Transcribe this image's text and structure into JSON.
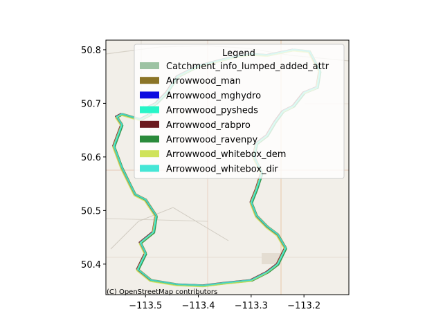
{
  "map": {
    "attribution": "(C) OpenStreetMap contributors",
    "xlim": [
      -113.575,
      -113.115
    ],
    "ylim": [
      50.343,
      50.818
    ],
    "x_ticks": [
      {
        "value": -113.5,
        "label": "−113.5"
      },
      {
        "value": -113.4,
        "label": "−113.4"
      },
      {
        "value": -113.3,
        "label": "−113.3"
      },
      {
        "value": -113.2,
        "label": "−113.2"
      }
    ],
    "y_ticks": [
      {
        "value": 50.4,
        "label": "50.4"
      },
      {
        "value": 50.5,
        "label": "50.5"
      },
      {
        "value": 50.6,
        "label": "50.6"
      },
      {
        "value": 50.7,
        "label": "50.7"
      },
      {
        "value": 50.8,
        "label": "50.8"
      }
    ],
    "basemap_color": "#f2efe9"
  },
  "legend": {
    "title": "Legend",
    "placement": "top-center",
    "entries": [
      {
        "label": "Catchment_info_lumped_added_attr",
        "color": "#9dc3a3"
      },
      {
        "label": "Arrowwood_man",
        "color": "#8b7426"
      },
      {
        "label": "Arrowwood_mghydro",
        "color": "#0c0ce0"
      },
      {
        "label": "Arrowwood_pysheds",
        "color": "#28f5c8"
      },
      {
        "label": "Arrowwood_rabpro",
        "color": "#6b1a1f"
      },
      {
        "label": "Arrowwood_ravenpy",
        "color": "#2a8a3a"
      },
      {
        "label": "Arrowwood_whitebox_dem",
        "color": "#cfe35a"
      },
      {
        "label": "Arrowwood_whitebox_dir",
        "color": "#45e6d6"
      }
    ]
  },
  "boundary": {
    "lon": [
      -113.46,
      -113.44,
      -113.4,
      -113.36,
      -113.33,
      -113.3,
      -113.27,
      -113.22,
      -113.19,
      -113.17,
      -113.175,
      -113.2,
      -113.22,
      -113.24,
      -113.255,
      -113.27,
      -113.29,
      -113.295,
      -113.28,
      -113.29,
      -113.3,
      -113.29,
      -113.27,
      -113.25,
      -113.235,
      -113.25,
      -113.27,
      -113.3,
      -113.35,
      -113.39,
      -113.44,
      -113.49,
      -113.515,
      -113.5,
      -113.51,
      -113.485,
      -113.48,
      -113.5,
      -113.52,
      -113.53,
      -113.545,
      -113.56,
      -113.545,
      -113.555,
      -113.545,
      -113.51,
      -113.49,
      -113.5,
      -113.48,
      -113.46
    ],
    "lat": [
      50.72,
      50.75,
      50.77,
      50.78,
      50.787,
      50.792,
      50.79,
      50.8,
      50.797,
      50.76,
      50.73,
      50.72,
      50.695,
      50.685,
      50.665,
      50.64,
      50.625,
      50.6,
      50.57,
      50.54,
      50.515,
      50.49,
      50.47,
      50.455,
      50.43,
      50.4,
      50.385,
      50.37,
      50.365,
      50.36,
      50.362,
      50.37,
      50.39,
      50.42,
      50.44,
      50.46,
      50.49,
      50.52,
      50.53,
      50.55,
      50.58,
      50.62,
      50.66,
      50.675,
      50.68,
      50.67,
      50.68,
      50.69,
      50.7,
      50.72
    ]
  }
}
